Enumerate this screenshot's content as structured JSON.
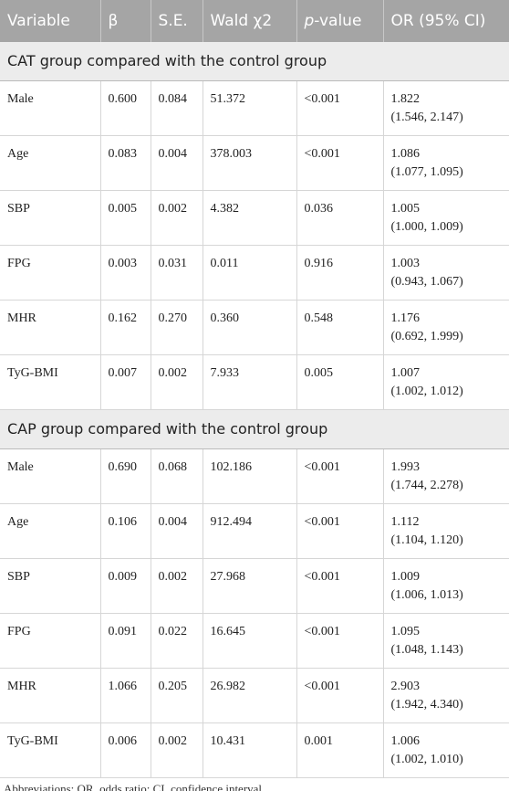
{
  "header": {
    "columns": [
      "Variable",
      "β",
      "S.E.",
      "Wald χ2",
      {
        "italic": "p",
        "rest": "-value"
      },
      "OR (95% CI)"
    ]
  },
  "sections": [
    {
      "title": "CAT group compared with the control group",
      "rows": [
        [
          "Male",
          "0.600",
          "0.084",
          "51.372",
          "<0.001",
          "1.822",
          "(1.546, 2.147)"
        ],
        [
          "Age",
          "0.083",
          "0.004",
          "378.003",
          "<0.001",
          "1.086",
          "(1.077, 1.095)"
        ],
        [
          "SBP",
          "0.005",
          "0.002",
          "4.382",
          "0.036",
          "1.005",
          "(1.000, 1.009)"
        ],
        [
          "FPG",
          "0.003",
          "0.031",
          "0.011",
          "0.916",
          "1.003",
          "(0.943, 1.067)"
        ],
        [
          "MHR",
          "0.162",
          "0.270",
          "0.360",
          "0.548",
          "1.176",
          "(0.692, 1.999)"
        ],
        [
          "TyG-BMI",
          "0.007",
          "0.002",
          "7.933",
          "0.005",
          "1.007",
          "(1.002, 1.012)"
        ]
      ]
    },
    {
      "title": "CAP group compared with the control group",
      "rows": [
        [
          "Male",
          "0.690",
          "0.068",
          "102.186",
          "<0.001",
          "1.993",
          "(1.744, 2.278)"
        ],
        [
          "Age",
          "0.106",
          "0.004",
          "912.494",
          "<0.001",
          "1.112",
          "(1.104, 1.120)"
        ],
        [
          "SBP",
          "0.009",
          "0.002",
          "27.968",
          "<0.001",
          "1.009",
          "(1.006, 1.013)"
        ],
        [
          "FPG",
          "0.091",
          "0.022",
          "16.645",
          "<0.001",
          "1.095",
          "(1.048, 1.143)"
        ],
        [
          "MHR",
          "1.066",
          "0.205",
          "26.982",
          "<0.001",
          "2.903",
          "(1.942, 4.340)"
        ],
        [
          "TyG-BMI",
          "0.006",
          "0.002",
          "10.431",
          "0.001",
          "1.006",
          "(1.002, 1.010)"
        ]
      ]
    }
  ],
  "footnote": "Abbreviations: OR, odds ratio; CI, confidence interval."
}
